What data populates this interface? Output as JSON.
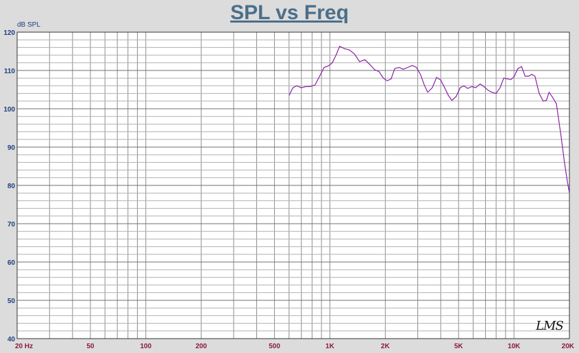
{
  "chart_data": {
    "type": "line",
    "title": "SPL vs Freq",
    "ylabel": "dB SPL",
    "xlabel": "",
    "xscale": "log",
    "xlim": [
      20,
      20000
    ],
    "ylim": [
      40,
      120
    ],
    "yticks": [
      40,
      50,
      60,
      70,
      80,
      90,
      100,
      110,
      120
    ],
    "xticks": [
      {
        "value": 20,
        "label": "20 Hz"
      },
      {
        "value": 50,
        "label": "50"
      },
      {
        "value": 100,
        "label": "100"
      },
      {
        "value": 200,
        "label": "200"
      },
      {
        "value": 500,
        "label": "500"
      },
      {
        "value": 1000,
        "label": "1K"
      },
      {
        "value": 2000,
        "label": "2K"
      },
      {
        "value": 5000,
        "label": "5K"
      },
      {
        "value": 10000,
        "label": "10K"
      },
      {
        "value": 20000,
        "label": "20K"
      }
    ],
    "grid": true,
    "line_color": "#8b1fa8",
    "series": [
      {
        "name": "",
        "x": [
          600,
          630,
          660,
          700,
          740,
          780,
          830,
          880,
          930,
          980,
          1030,
          1080,
          1130,
          1200,
          1280,
          1360,
          1450,
          1550,
          1650,
          1750,
          1850,
          1950,
          2050,
          2150,
          2250,
          2380,
          2500,
          2650,
          2800,
          2950,
          3100,
          3250,
          3400,
          3600,
          3800,
          4000,
          4200,
          4400,
          4600,
          4850,
          5100,
          5350,
          5600,
          5900,
          6200,
          6550,
          6900,
          7250,
          7600,
          8000,
          8400,
          8800,
          9200,
          9600,
          10000,
          10500,
          11000,
          11500,
          12000,
          12500,
          13000,
          13700,
          14400,
          15000,
          15500,
          16200,
          17000,
          18000,
          18800,
          19500,
          20000
        ],
        "y": [
          103.5,
          105.5,
          106,
          105.5,
          105.8,
          105.8,
          106.2,
          108.5,
          110.8,
          111.2,
          112,
          114,
          116.3,
          115.7,
          115.3,
          114.3,
          112.3,
          112.8,
          111.5,
          110.2,
          109.7,
          108,
          107.3,
          107.8,
          110.5,
          110.8,
          110.3,
          110.8,
          111.3,
          110.8,
          109,
          106.3,
          104.3,
          105.5,
          108.2,
          107.5,
          105.5,
          103.5,
          102.2,
          103.2,
          105.5,
          106,
          105.3,
          105.8,
          105.5,
          106.5,
          105.7,
          104.8,
          104.3,
          104,
          105.5,
          108,
          107.8,
          107.6,
          108.3,
          110.5,
          111,
          108.5,
          108.5,
          109,
          108.5,
          104,
          102,
          102.2,
          104.3,
          103,
          101.3,
          93,
          86,
          81,
          78
        ]
      }
    ]
  },
  "logo_text": "LMS"
}
